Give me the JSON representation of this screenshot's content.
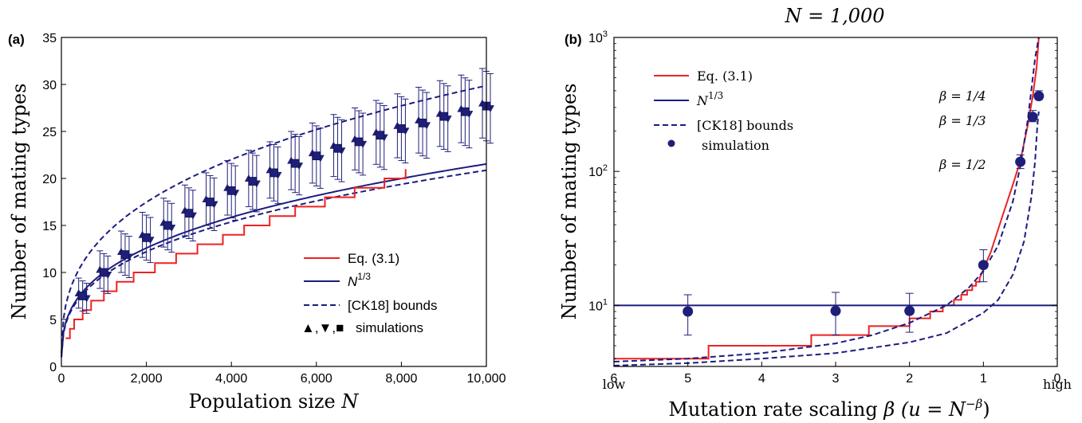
{
  "colors": {
    "red": "#ee2222",
    "navy": "#1c1c80",
    "marker": "#1f1f7a"
  },
  "chart_data": [
    {
      "type": "line",
      "panel_label": "(a)",
      "title": "",
      "xlabel": "Population size",
      "xlabel_var": "N",
      "ylabel": "Number of mating types",
      "xlim": [
        0,
        10000
      ],
      "ylim": [
        0,
        35
      ],
      "x_ticks": [
        "0",
        "2,000",
        "4,000",
        "6,000",
        "8,000",
        "10,000"
      ],
      "x_tick_values": [
        0,
        2000,
        4000,
        6000,
        8000,
        10000
      ],
      "y_ticks": [
        "0",
        "5",
        "10",
        "15",
        "20",
        "25",
        "30",
        "35"
      ],
      "y_tick_values": [
        0,
        5,
        10,
        15,
        20,
        25,
        30,
        35
      ],
      "legend": {
        "position": "lower-right",
        "entries": [
          {
            "label": "Eq. (3.1)",
            "style": "solid",
            "color": "#ee2222"
          },
          {
            "label": "N",
            "sup": "1/3",
            "style": "solid",
            "color": "#1c1c80"
          },
          {
            "label": "[CK18] bounds",
            "style": "dashed",
            "color": "#1c1c80"
          },
          {
            "label": "simulations",
            "prefix": "▲,▼,■",
            "style": "markers",
            "color": "#1f1f7a"
          }
        ]
      },
      "series": [
        {
          "name": "Eq. (3.1)",
          "kind": "step",
          "color": "#ee2222",
          "x": [
            100,
            200,
            300,
            500,
            700,
            1000,
            1300,
            1700,
            2200,
            2700,
            3200,
            3800,
            4300,
            4900,
            5500,
            6200,
            6900,
            7600,
            8100
          ],
          "y": [
            3,
            4,
            5,
            6,
            7,
            8,
            9,
            10,
            11,
            12,
            13,
            14,
            15,
            16,
            17,
            18,
            19,
            20,
            21
          ]
        },
        {
          "name": "N^{1/3}",
          "kind": "power",
          "color": "#1c1c80",
          "coef": 1.0,
          "exp": 0.3333,
          "x_range": [
            0,
            10000
          ]
        },
        {
          "name": "[CK18] upper bound",
          "kind": "power",
          "style": "dashed",
          "color": "#1c1c80",
          "coef": 1.387,
          "exp": 0.3333,
          "x_range": [
            0,
            10000
          ]
        },
        {
          "name": "[CK18] lower bound",
          "kind": "power",
          "style": "dashed",
          "color": "#1c1c80",
          "coef": 0.969,
          "exp": 0.3333,
          "x_range": [
            0,
            10000
          ]
        },
        {
          "name": "simulations",
          "kind": "markers",
          "color": "#1f1f7a",
          "x": [
            500,
            1000,
            1500,
            2000,
            2500,
            3000,
            3500,
            4000,
            4500,
            5000,
            5500,
            6000,
            6500,
            7000,
            7500,
            8000,
            8500,
            9000,
            9500,
            10000
          ],
          "y": [
            7.5,
            10.0,
            11.9,
            13.7,
            15.0,
            16.3,
            17.5,
            18.7,
            19.7,
            20.6,
            21.6,
            22.4,
            23.2,
            23.9,
            24.6,
            25.3,
            25.9,
            26.6,
            27.1,
            27.7
          ],
          "err": [
            1.6,
            2.0,
            2.2,
            2.4,
            2.6,
            2.7,
            2.8,
            2.9,
            3.0,
            3.0,
            3.1,
            3.2,
            3.3,
            3.3,
            3.4,
            3.4,
            3.5,
            3.5,
            3.6,
            3.7
          ]
        }
      ]
    },
    {
      "type": "line",
      "panel_label": "(b)",
      "title": "N = 1,000",
      "xlabel": "Mutation rate scaling",
      "xlabel_var": "β",
      "xlabel_paren": "(u = N",
      "xlabel_exp": "−β",
      "ylabel": "Number of mating types",
      "xlim": [
        6,
        0
      ],
      "ylim": [
        3.5,
        1000
      ],
      "y_scale": "log",
      "x_ticks": [
        "6",
        "5",
        "4",
        "3",
        "2",
        "1",
        "0"
      ],
      "x_tick_values": [
        6,
        5,
        4,
        3,
        2,
        1,
        0
      ],
      "x_end_labels": {
        "left": "low",
        "right": "high"
      },
      "y_ticks": [
        {
          "base": "10",
          "exp": "1"
        },
        {
          "base": "10",
          "exp": "2"
        },
        {
          "base": "10",
          "exp": "3"
        }
      ],
      "y_tick_values": [
        10,
        100,
        1000
      ],
      "annotations": [
        "β = 1/4",
        "β = 1/3",
        "β = 1/2"
      ],
      "legend": {
        "position": "upper-left",
        "entries": [
          {
            "label": "Eq. (3.1)",
            "style": "solid",
            "color": "#ee2222"
          },
          {
            "label": "N",
            "sup": "1/3",
            "style": "solid",
            "color": "#1c1c80"
          },
          {
            "label": "[CK18] bounds",
            "style": "dashed",
            "color": "#1c1c80"
          },
          {
            "label": "simulation",
            "style": "dot",
            "color": "#1f1f7a"
          }
        ]
      },
      "series": [
        {
          "name": "Eq. (3.1)",
          "kind": "step",
          "color": "#ee2222",
          "x": [
            6,
            4.72,
            3.33,
            2.55,
            2.0,
            1.72,
            1.55,
            1.4,
            1.3,
            1.22,
            1.15,
            1.1,
            1.05
          ],
          "y": [
            4,
            5,
            6,
            7,
            8,
            9,
            10,
            11,
            12,
            13,
            14,
            15,
            16
          ],
          "continuation_x": [
            1.05,
            0.9,
            0.75,
            0.6,
            0.5,
            0.4,
            0.33,
            0.28,
            0.25
          ],
          "continuation_y": [
            16,
            25,
            45,
            80,
            120,
            220,
            370,
            600,
            1000
          ]
        },
        {
          "name": "N^{1/3}",
          "kind": "constant",
          "color": "#1c1c80",
          "y": 10
        },
        {
          "name": "[CK18] upper bound",
          "kind": "curve",
          "style": "dashed",
          "color": "#1c1c80",
          "x": [
            6,
            5,
            4,
            3,
            2.5,
            2,
            1.5,
            1.2,
            1.0,
            0.8,
            0.6,
            0.5,
            0.4,
            0.3,
            0.25
          ],
          "y": [
            3.8,
            4.0,
            4.4,
            5.2,
            6.0,
            7.4,
            10.0,
            13.5,
            18.0,
            28,
            60,
            110,
            240,
            700,
            1000
          ]
        },
        {
          "name": "[CK18] lower bound",
          "kind": "curve",
          "style": "dashed",
          "color": "#1c1c80",
          "x": [
            6,
            5,
            4,
            3,
            2,
            1.5,
            1.0,
            0.8,
            0.6,
            0.45,
            0.35,
            0.3,
            0.27,
            0.25
          ],
          "y": [
            3.55,
            3.7,
            4.0,
            4.4,
            5.3,
            6.2,
            8.8,
            11,
            17,
            30,
            65,
            120,
            220,
            280
          ]
        },
        {
          "name": "simulation",
          "kind": "markers",
          "color": "#1f1f7a",
          "x": [
            5,
            3,
            2,
            1,
            0.5,
            0.333,
            0.25
          ],
          "y": [
            9,
            9.1,
            9.1,
            20,
            118,
            255,
            365
          ],
          "err_lo": [
            6,
            6,
            6.3,
            15,
            105,
            235,
            345
          ],
          "err_hi": [
            12,
            12.5,
            12.3,
            26,
            133,
            285,
            400
          ]
        }
      ]
    }
  ]
}
